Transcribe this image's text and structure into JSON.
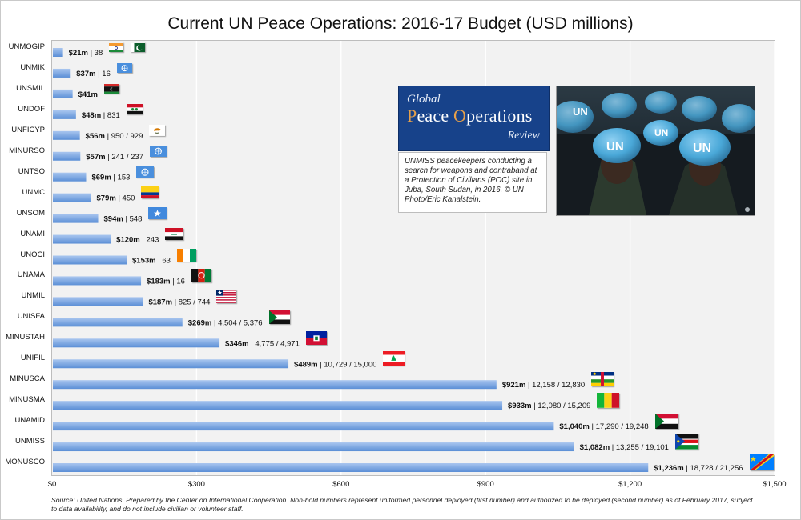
{
  "title": "Current UN Peace Operations: 2016-17 Budget (USD millions)",
  "logo": {
    "line1": "Global",
    "line2": "Peace Operations",
    "line3": "Review"
  },
  "photo_caption": "UNMISS peacekeepers conducting a search for weapons and contraband at a Protection of Civilians (POC) site in Juba, South Sudan, in 2016. © UN Photo/Eric Kanalstein.",
  "photo_helmet_text": "UN",
  "footnote": "Source: United Nations. Prepared by the Center on International Cooperation. Non-bold numbers represent uniformed personnel deployed (first number) and authorized to be deployed (second number) as of February 2017, subject to data availability, and do not include civilian or volunteer staff.",
  "colors": {
    "bar": "#5b8fd6",
    "bar_light": "#a9c6ef",
    "plot_bg": "#f2f2f2",
    "grid": "#ffffff",
    "un_blue": "#4a8fdd"
  },
  "chart_data": {
    "type": "bar",
    "orientation": "horizontal",
    "title": "Current UN Peace Operations: 2016-17 Budget (USD millions)",
    "xlabel": "",
    "ylabel": "",
    "xlim": [
      0,
      1500
    ],
    "xticks": [
      0,
      300,
      600,
      900,
      1200,
      1500
    ],
    "xtick_labels": [
      "$0",
      "$300",
      "$600",
      "$900",
      "$1,200",
      "$1,500"
    ],
    "grid": true,
    "categories": [
      "UNMOGIP",
      "UNMIK",
      "UNSMIL",
      "UNDOF",
      "UNFICYP",
      "MINURSO",
      "UNTSO",
      "UNMC",
      "UNSOM",
      "UNAMI",
      "UNOCI",
      "UNAMA",
      "UNMIL",
      "UNISFA",
      "MINUSTAH",
      "UNIFIL",
      "MINUSCA",
      "MINUSMA",
      "UNAMID",
      "UNMISS",
      "MONUSCO"
    ],
    "values": [
      21,
      37,
      41,
      48,
      56,
      57,
      69,
      79,
      94,
      120,
      153,
      183,
      187,
      269,
      346,
      489,
      921,
      933,
      1040,
      1082,
      1236
    ],
    "budget_labels": [
      "$21m",
      "$37m",
      "$41m",
      "$48m",
      "$56m",
      "$57m",
      "$69m",
      "$79m",
      "$94m",
      "$120m",
      "$153m",
      "$183m",
      "$187m",
      "$269m",
      "$346m",
      "$489m",
      "$921m",
      "$933m",
      "$1,040m",
      "$1,082m",
      "$1,236m"
    ],
    "personnel_labels": [
      "38",
      "16",
      "",
      "831",
      "950 / 929",
      "241 / 237",
      "153",
      "450",
      "548",
      "243",
      "63",
      "16",
      "825 / 744",
      "4,504 / 5,376",
      "4,775 / 4,971",
      "10,729 / 15,000",
      "12,158 / 12,830",
      "12,080 / 15,209",
      "17,290 / 19,248",
      "13,255 / 19,101",
      "18,728 / 21,256"
    ],
    "flags": [
      [
        "india",
        "pakistan"
      ],
      [
        "un"
      ],
      [
        "libya"
      ],
      [
        "syria"
      ],
      [
        "cyprus"
      ],
      [
        "un"
      ],
      [
        "un"
      ],
      [
        "colombia"
      ],
      [
        "somalia"
      ],
      [
        "iraq"
      ],
      [
        "cote-divoire"
      ],
      [
        "afghanistan"
      ],
      [
        "liberia"
      ],
      [
        "sudan"
      ],
      [
        "haiti"
      ],
      [
        "lebanon"
      ],
      [
        "car"
      ],
      [
        "mali"
      ],
      [
        "sudan"
      ],
      [
        "south-sudan"
      ],
      [
        "drc"
      ]
    ]
  }
}
